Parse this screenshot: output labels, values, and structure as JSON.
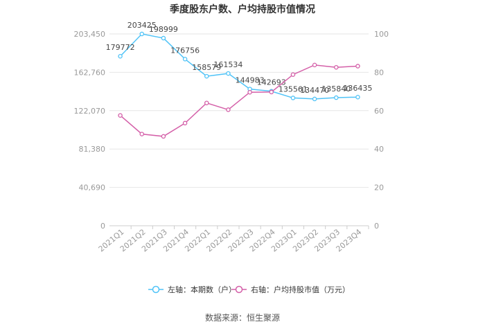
{
  "chart_data": {
    "type": "line",
    "title": "季度股东户数、户均持股市值情况",
    "source": "数据来源：恒生聚源",
    "categories": [
      "2021Q1",
      "2021Q2",
      "2021Q3",
      "2021Q4",
      "2022Q1",
      "2022Q2",
      "2022Q3",
      "2022Q4",
      "2023Q1",
      "2023Q2",
      "2023Q3",
      "2023Q4"
    ],
    "left_axis": {
      "ticks": [
        "0",
        "40,690",
        "81,380",
        "122,070",
        "162,760",
        "203,450"
      ],
      "ylim": [
        0,
        203450
      ]
    },
    "right_axis": {
      "ticks": [
        "0",
        "20",
        "40",
        "60",
        "80",
        "100"
      ],
      "ylim": [
        0,
        100
      ]
    },
    "series": [
      {
        "name": "左轴：本期数（户）",
        "axis": "left",
        "color": "#4fc3f7",
        "values": [
          179772,
          203425,
          198999,
          176756,
          158579,
          161534,
          144983,
          142693,
          135561,
          134470,
          135840,
          136435
        ],
        "labels": [
          "179772",
          "203425",
          "198999",
          "176756",
          "158579",
          "161534",
          "144983",
          "142693",
          "135561",
          "134470",
          "135840",
          "136435"
        ]
      },
      {
        "name": "右轴：户均持股市值（万元）",
        "axis": "right",
        "color": "#d45fa8",
        "values": [
          57.5,
          47.8,
          46.6,
          53.5,
          64.0,
          60.5,
          69.6,
          69.7,
          78.8,
          83.8,
          82.6,
          83.2
        ]
      }
    ],
    "grid": true,
    "legend_position": "bottom"
  }
}
